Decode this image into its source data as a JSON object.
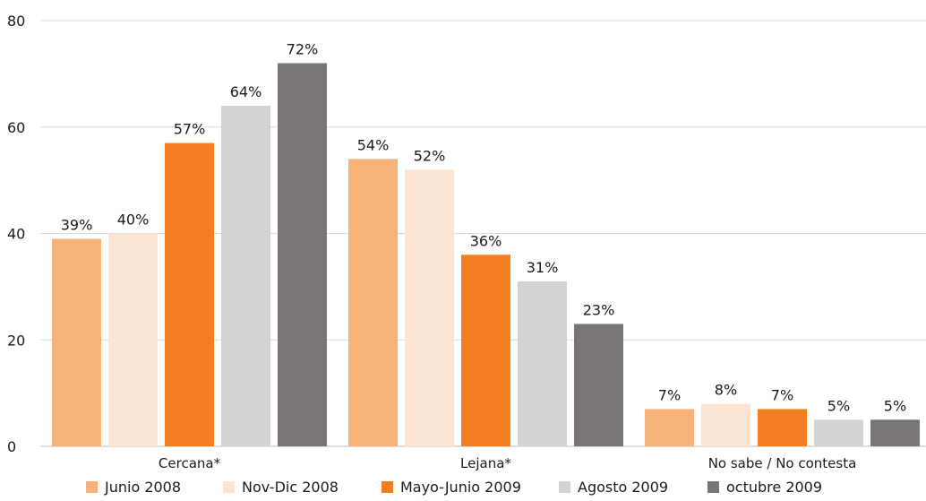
{
  "chart_data": {
    "type": "bar",
    "categories": [
      "Cercana*",
      "Lejana*",
      "No sabe / No contesta"
    ],
    "series": [
      {
        "name": "Junio 2008",
        "values": [
          39,
          54,
          7
        ],
        "labels": [
          "39%",
          "54%",
          "7%"
        ]
      },
      {
        "name": "Nov-Dic 2008",
        "values": [
          40,
          52,
          8
        ],
        "labels": [
          "40%",
          "52%",
          "8%"
        ]
      },
      {
        "name": "Mayo-Junio 2009",
        "values": [
          57,
          36,
          7
        ],
        "labels": [
          "57%",
          "36%",
          "7%"
        ]
      },
      {
        "name": "Agosto 2009",
        "values": [
          64,
          31,
          5
        ],
        "labels": [
          "64%",
          "31%",
          "5%"
        ]
      },
      {
        "name": "octubre 2009",
        "values": [
          72,
          23,
          5
        ],
        "labels": [
          "72%",
          "23%",
          "5%"
        ]
      }
    ],
    "colors": [
      "#f7b27a",
      "#fce4d3",
      "#f37e20",
      "#d4d2d2",
      "#787574"
    ],
    "yticks": [
      0,
      20,
      40,
      60,
      80
    ],
    "ylim": [
      0,
      80
    ],
    "title": "",
    "xlabel": "",
    "ylabel": "",
    "grid": true,
    "legend_position": "bottom"
  }
}
